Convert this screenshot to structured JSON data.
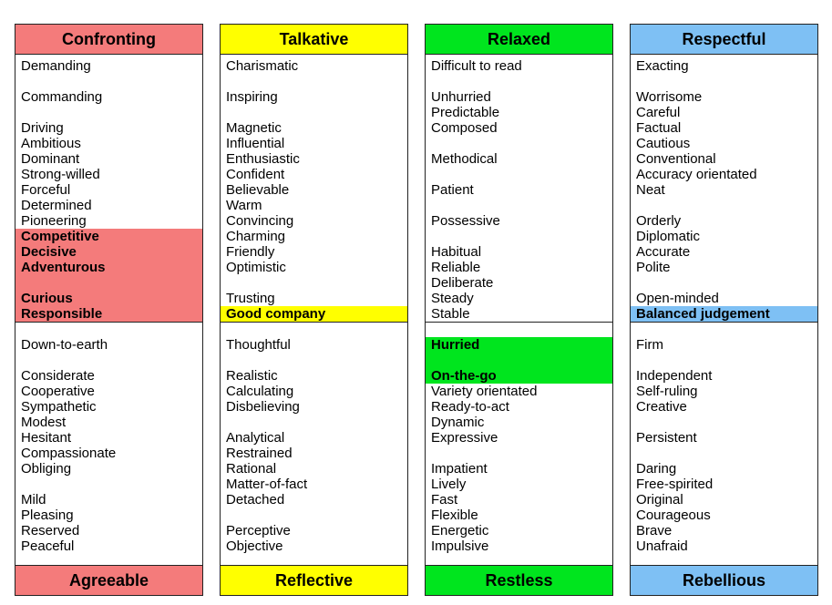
{
  "colors": {
    "confronting": "#f47b7b",
    "talkative": "#ffff00",
    "relaxed": "#00e51e",
    "respectful": "#7ec0f4"
  },
  "columns": [
    {
      "key": "confronting",
      "title": "Confronting",
      "footer": "Agreeable",
      "highlight_rows": [
        11,
        17
      ],
      "items": [
        {
          "row": 0,
          "text": "Demanding"
        },
        {
          "row": 2,
          "text": "Commanding"
        },
        {
          "row": 4,
          "text": "Driving"
        },
        {
          "row": 5,
          "text": "Ambitious"
        },
        {
          "row": 6,
          "text": "Dominant"
        },
        {
          "row": 7,
          "text": "Strong-willed"
        },
        {
          "row": 8,
          "text": "Forceful"
        },
        {
          "row": 9,
          "text": "Determined"
        },
        {
          "row": 10,
          "text": "Pioneering"
        },
        {
          "row": 11,
          "text": "Competitive",
          "bold": true
        },
        {
          "row": 12,
          "text": "Decisive",
          "bold": true
        },
        {
          "row": 13,
          "text": "Adventurous",
          "bold": true
        },
        {
          "row": 15,
          "text": "Curious",
          "bold": true
        },
        {
          "row": 16,
          "text": "Responsible",
          "bold": true
        },
        {
          "row": 18,
          "text": "Down-to-earth"
        },
        {
          "row": 20,
          "text": "Considerate"
        },
        {
          "row": 21,
          "text": "Cooperative"
        },
        {
          "row": 22,
          "text": "Sympathetic"
        },
        {
          "row": 23,
          "text": "Modest"
        },
        {
          "row": 24,
          "text": "Hesitant"
        },
        {
          "row": 25,
          "text": "Compassionate"
        },
        {
          "row": 26,
          "text": "Obliging"
        },
        {
          "row": 28,
          "text": "Mild"
        },
        {
          "row": 29,
          "text": "Pleasing"
        },
        {
          "row": 30,
          "text": "Reserved"
        },
        {
          "row": 31,
          "text": "Peaceful"
        }
      ]
    },
    {
      "key": "talkative",
      "title": "Talkative",
      "footer": "Reflective",
      "highlight_rows": [
        16,
        17
      ],
      "items": [
        {
          "row": 0,
          "text": "Charismatic"
        },
        {
          "row": 2,
          "text": "Inspiring"
        },
        {
          "row": 4,
          "text": "Magnetic"
        },
        {
          "row": 5,
          "text": "Influential"
        },
        {
          "row": 6,
          "text": "Enthusiastic"
        },
        {
          "row": 7,
          "text": "Confident"
        },
        {
          "row": 8,
          "text": "Believable"
        },
        {
          "row": 9,
          "text": "Warm"
        },
        {
          "row": 10,
          "text": "Convincing"
        },
        {
          "row": 11,
          "text": "Charming"
        },
        {
          "row": 12,
          "text": "Friendly"
        },
        {
          "row": 13,
          "text": "Optimistic"
        },
        {
          "row": 15,
          "text": "Trusting"
        },
        {
          "row": 16,
          "text": "Good company",
          "bold": true
        },
        {
          "row": 18,
          "text": "Thoughtful"
        },
        {
          "row": 20,
          "text": "Realistic"
        },
        {
          "row": 21,
          "text": "Calculating"
        },
        {
          "row": 22,
          "text": "Disbelieving"
        },
        {
          "row": 24,
          "text": "Analytical"
        },
        {
          "row": 25,
          "text": "Restrained"
        },
        {
          "row": 26,
          "text": "Rational"
        },
        {
          "row": 27,
          "text": "Matter-of-fact"
        },
        {
          "row": 28,
          "text": "Detached"
        },
        {
          "row": 30,
          "text": "Perceptive"
        },
        {
          "row": 31,
          "text": "Objective"
        }
      ]
    },
    {
      "key": "relaxed",
      "title": "Relaxed",
      "footer": "Restless",
      "highlight_rows": [
        18,
        21
      ],
      "items": [
        {
          "row": 0,
          "text": "Difficult to read"
        },
        {
          "row": 2,
          "text": "Unhurried"
        },
        {
          "row": 3,
          "text": "Predictable"
        },
        {
          "row": 4,
          "text": "Composed"
        },
        {
          "row": 6,
          "text": "Methodical"
        },
        {
          "row": 8,
          "text": "Patient"
        },
        {
          "row": 10,
          "text": "Possessive"
        },
        {
          "row": 12,
          "text": "Habitual"
        },
        {
          "row": 13,
          "text": "Reliable"
        },
        {
          "row": 14,
          "text": "Deliberate"
        },
        {
          "row": 15,
          "text": "Steady"
        },
        {
          "row": 16,
          "text": "Stable"
        },
        {
          "row": 18,
          "text": "Hurried",
          "bold": true
        },
        {
          "row": 20,
          "text": "On-the-go",
          "bold": true
        },
        {
          "row": 21,
          "text": "Variety orientated"
        },
        {
          "row": 22,
          "text": "Ready-to-act"
        },
        {
          "row": 23,
          "text": "Dynamic"
        },
        {
          "row": 24,
          "text": "Expressive"
        },
        {
          "row": 26,
          "text": "Impatient"
        },
        {
          "row": 27,
          "text": "Lively"
        },
        {
          "row": 28,
          "text": "Fast"
        },
        {
          "row": 29,
          "text": "Flexible"
        },
        {
          "row": 30,
          "text": "Energetic"
        },
        {
          "row": 31,
          "text": "Impulsive"
        }
      ]
    },
    {
      "key": "respectful",
      "title": "Respectful",
      "footer": "Rebellious",
      "highlight_rows": [
        16,
        17
      ],
      "items": [
        {
          "row": 0,
          "text": "Exacting"
        },
        {
          "row": 2,
          "text": "Worrisome"
        },
        {
          "row": 3,
          "text": "Careful"
        },
        {
          "row": 4,
          "text": "Factual"
        },
        {
          "row": 5,
          "text": "Cautious"
        },
        {
          "row": 6,
          "text": "Conventional"
        },
        {
          "row": 7,
          "text": "Accuracy orientated"
        },
        {
          "row": 8,
          "text": "Neat"
        },
        {
          "row": 10,
          "text": "Orderly"
        },
        {
          "row": 11,
          "text": "Diplomatic"
        },
        {
          "row": 12,
          "text": "Accurate"
        },
        {
          "row": 13,
          "text": "Polite"
        },
        {
          "row": 15,
          "text": "Open-minded"
        },
        {
          "row": 16,
          "text": "Balanced judgement",
          "bold": true
        },
        {
          "row": 18,
          "text": "Firm"
        },
        {
          "row": 20,
          "text": "Independent"
        },
        {
          "row": 21,
          "text": "Self-ruling"
        },
        {
          "row": 22,
          "text": "Creative"
        },
        {
          "row": 24,
          "text": "Persistent"
        },
        {
          "row": 26,
          "text": "Daring"
        },
        {
          "row": 27,
          "text": "Free-spirited"
        },
        {
          "row": 28,
          "text": "Original"
        },
        {
          "row": 29,
          "text": "Courageous"
        },
        {
          "row": 30,
          "text": "Brave"
        },
        {
          "row": 31,
          "text": "Unafraid"
        }
      ]
    }
  ]
}
